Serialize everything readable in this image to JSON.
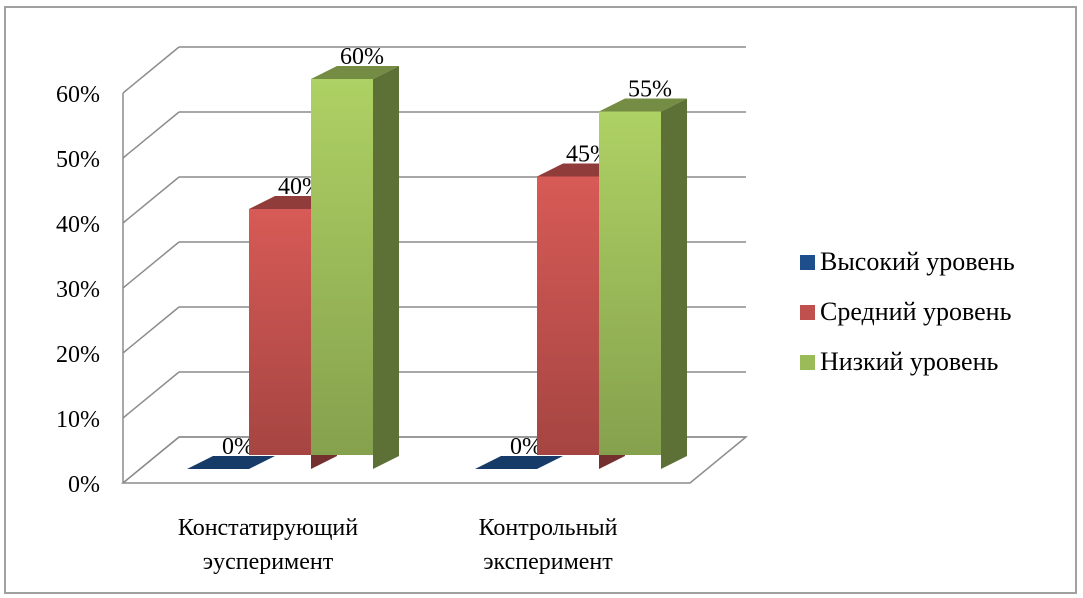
{
  "chart_data": {
    "type": "bar",
    "title": "",
    "xlabel": "",
    "ylabel": "",
    "categories": [
      [
        "Констатирующий",
        "эусперимент"
      ],
      [
        "Контрольный",
        "эксперимент"
      ]
    ],
    "series": [
      {
        "name": "Высокий уровень",
        "values": [
          0,
          0
        ],
        "labels": [
          "0%",
          "0%"
        ],
        "color": "#1f4e8c"
      },
      {
        "name": "Средний уровень",
        "values": [
          40,
          45
        ],
        "labels": [
          "40%",
          "45%"
        ],
        "color": "#c0504d"
      },
      {
        "name": "Низкий уровень",
        "values": [
          60,
          55
        ],
        "labels": [
          "60%",
          "55%"
        ],
        "color": "#9bbb59"
      }
    ],
    "yticks": [
      "0%",
      "10%",
      "20%",
      "30%",
      "40%",
      "50%",
      "60%"
    ],
    "ylim": [
      0,
      60
    ],
    "grid": true,
    "legend_position": "right"
  }
}
